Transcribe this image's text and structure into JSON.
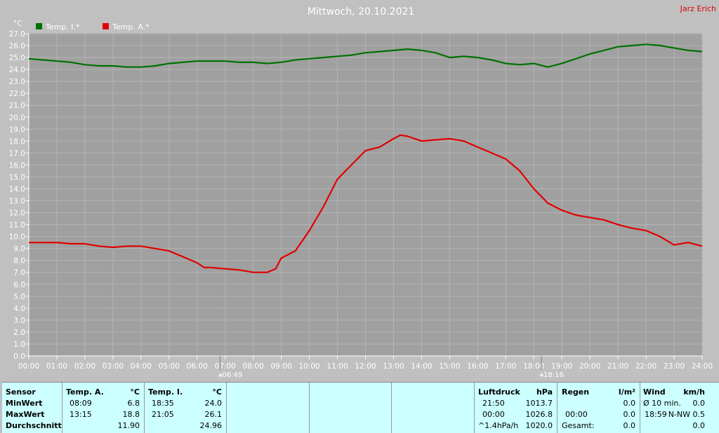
{
  "chart_data": {
    "type": "line",
    "title": "Mittwoch, 20.10.2021",
    "author": "Jarz Erich",
    "ylabel": "°C",
    "ylim": [
      0,
      27
    ],
    "xlim": [
      0,
      24
    ],
    "y_ticks": [
      "0.0",
      "1.0",
      "2.0",
      "3.0",
      "4.0",
      "5.0",
      "6.0",
      "7.0",
      "8.0",
      "9.0",
      "10.0",
      "11.0",
      "12.0",
      "13.0",
      "14.0",
      "15.0",
      "16.0",
      "17.0",
      "18.0",
      "19.0",
      "20.0",
      "21.0",
      "22.0",
      "23.0",
      "24.0",
      "25.0",
      "26.0",
      "27.0"
    ],
    "x_ticks": [
      "00:00",
      "01:00",
      "02:00",
      "03:00",
      "04:00",
      "05:00",
      "06:00",
      "07:00",
      "08:00",
      "09:00",
      "10:00",
      "11:00",
      "12:00",
      "13:00",
      "14:00",
      "15:00",
      "16:00",
      "17:00",
      "18:00",
      "19:00",
      "20:00",
      "21:00",
      "22:00",
      "23:00",
      "24:00"
    ],
    "grid": true,
    "legend_position": "top-left",
    "sunrise": {
      "label": "06:49",
      "hour": 6.82
    },
    "sunset": {
      "label": "18:16",
      "hour": 18.27
    },
    "colors": {
      "background": "#c0c0c0",
      "plot": "#a0a0a0",
      "grid": "#b4b4b4"
    },
    "series": [
      {
        "name": "Temp. I.*",
        "color": "#007000",
        "x": [
          0,
          0.5,
          1,
          1.5,
          2,
          2.5,
          3,
          3.5,
          4,
          4.5,
          5,
          5.5,
          6,
          6.5,
          7,
          7.5,
          8,
          8.5,
          9,
          9.5,
          10,
          10.5,
          11,
          11.5,
          12,
          12.5,
          13,
          13.5,
          14,
          14.5,
          15,
          15.5,
          16,
          16.5,
          17,
          17.5,
          18,
          18.5,
          19,
          19.5,
          20,
          20.5,
          21,
          21.5,
          22,
          22.5,
          23,
          23.5,
          24
        ],
        "values": [
          24.9,
          24.8,
          24.7,
          24.6,
          24.4,
          24.3,
          24.3,
          24.2,
          24.2,
          24.3,
          24.5,
          24.6,
          24.7,
          24.7,
          24.7,
          24.6,
          24.6,
          24.5,
          24.6,
          24.8,
          24.9,
          25.0,
          25.1,
          25.2,
          25.4,
          25.5,
          25.6,
          25.7,
          25.6,
          25.4,
          25.0,
          25.1,
          25.0,
          24.8,
          24.5,
          24.4,
          24.5,
          24.2,
          24.5,
          24.9,
          25.3,
          25.6,
          25.9,
          26.0,
          26.1,
          26.0,
          25.8,
          25.6,
          25.5
        ]
      },
      {
        "name": "Temp. A.*",
        "color": "#e00000",
        "x": [
          0,
          0.5,
          1,
          1.5,
          2,
          2.5,
          3,
          3.5,
          4,
          4.5,
          5,
          5.5,
          6,
          6.25,
          6.5,
          7,
          7.5,
          8,
          8.5,
          8.8,
          9,
          9.5,
          10,
          10.5,
          11,
          11.5,
          12,
          12.5,
          13,
          13.25,
          13.5,
          14,
          14.5,
          15,
          15.5,
          16,
          16.5,
          17,
          17.5,
          18,
          18.5,
          19,
          19.5,
          20,
          20.5,
          21,
          21.5,
          22,
          22.5,
          23,
          23.5,
          24
        ],
        "values": [
          9.5,
          9.5,
          9.5,
          9.4,
          9.4,
          9.2,
          9.1,
          9.2,
          9.2,
          9.0,
          8.8,
          8.3,
          7.8,
          7.4,
          7.4,
          7.3,
          7.2,
          7.0,
          7.0,
          7.3,
          8.2,
          8.8,
          10.5,
          12.5,
          14.8,
          16.0,
          17.2,
          17.5,
          18.2,
          18.5,
          18.4,
          18.0,
          18.1,
          18.2,
          18.0,
          17.5,
          17.0,
          16.5,
          15.5,
          14.0,
          12.8,
          12.2,
          11.8,
          11.6,
          11.4,
          11.0,
          10.7,
          10.5,
          10.0,
          9.3,
          9.5,
          9.2
        ]
      }
    ]
  },
  "table": {
    "sensor": {
      "header": "Sensor",
      "min": "MinWert",
      "max": "MaxWert",
      "avg": "Durchschnitt"
    },
    "temp_a": {
      "header": "Temp. A.",
      "unit": "°C",
      "min_time": "08:09",
      "min_val": "6.8",
      "max_time": "13:15",
      "max_val": "18.8",
      "avg": "11.90"
    },
    "temp_i": {
      "header": "Temp. I.",
      "unit": "°C",
      "min_time": "18:35",
      "min_val": "24.0",
      "max_time": "21:05",
      "max_val": "26.1",
      "avg": "24.96"
    },
    "pressure": {
      "header": "Luftdruck",
      "unit": "hPa",
      "min_time": "21:50",
      "min_val": "1013.7",
      "max_time": "00:00",
      "max_val": "1026.8",
      "trend_label": "^1.4hPa/h",
      "trend_val": "1020.0"
    },
    "rain": {
      "header": "Regen",
      "unit": "l/m²",
      "row1_val": "0.0",
      "row2_time": "00:00",
      "row2_val": "0.0",
      "total_label": "Gesamt:",
      "total_val": "0.0"
    },
    "wind": {
      "header": "Wind",
      "unit": "km/h",
      "avg_label": "Ø 10 min.",
      "avg_val": "0.0",
      "max_time": "18:59",
      "max_val": "N-NW 0.5",
      "row3_val": "0.0"
    }
  }
}
